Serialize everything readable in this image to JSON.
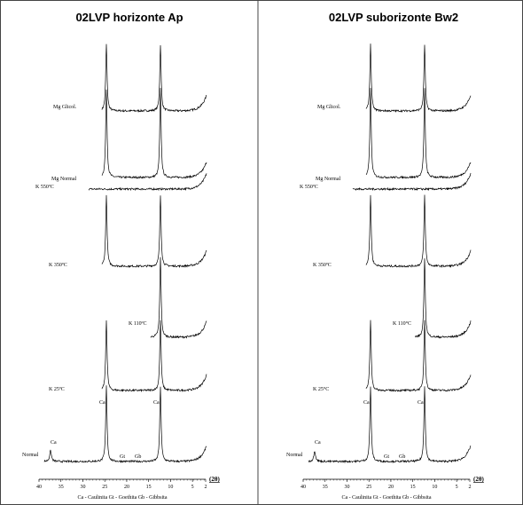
{
  "panels": [
    {
      "title": "02LVP horizonte Ap",
      "xlim": [
        40,
        2
      ],
      "xticks": [
        40,
        35,
        30,
        25,
        20,
        15,
        10,
        5,
        2
      ],
      "xlabel": "(2θ)",
      "legend": "Ca - Caulinita    Gt - Goethita    Gb - Gibbsita",
      "traces": [
        "Mg Glicol.",
        "Mg Normal",
        "K 550ºC",
        "K 350ºC",
        "K 110ºC",
        "K 25ºC",
        "Normal"
      ],
      "peak_labels": [
        "Ca",
        "Ca",
        "Ca",
        "Gt",
        "Gb"
      ]
    },
    {
      "title": "02LVP suborizonte Bw2",
      "xlim": [
        40,
        2
      ],
      "xticks": [
        40,
        35,
        30,
        25,
        20,
        15,
        10,
        5,
        2
      ],
      "xlabel": "(2θ)",
      "legend": "Ca - Caulinita    Gt - Goethita    Gb - Gibbsita",
      "traces": [
        "Mg Glicol.",
        "Mg Normal",
        "K 550ºC",
        "K 350ºC",
        "K 110°C",
        "K 25°C",
        "Normal"
      ],
      "peak_labels": [
        "Ca",
        "Ca",
        "Ca",
        "Gt",
        "Gb"
      ]
    }
  ]
}
